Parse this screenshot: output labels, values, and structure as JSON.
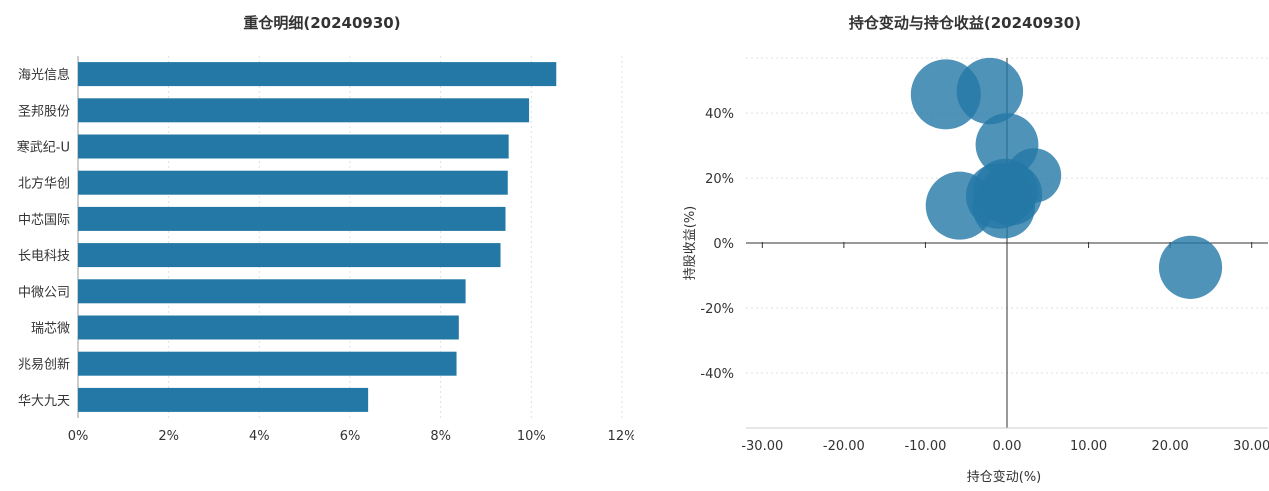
{
  "chart_data": [
    {
      "type": "bar",
      "orientation": "horizontal",
      "title": "重仓明细(20240930)",
      "categories": [
        "海光信息",
        "圣邦股份",
        "寒武纪-U",
        "北方华创",
        "中芯国际",
        "长电科技",
        "中微公司",
        "瑞芯微",
        "兆易创新",
        "华大九天"
      ],
      "values": [
        10.55,
        9.95,
        9.5,
        9.48,
        9.43,
        9.32,
        8.55,
        8.4,
        8.35,
        6.4
      ],
      "xlim": [
        0,
        12
      ],
      "xticks": [
        "0%",
        "2%",
        "4%",
        "6%",
        "8%",
        "10%",
        "12%"
      ],
      "grid": true,
      "color": "#2378a6"
    },
    {
      "type": "scatter",
      "subtype": "bubble",
      "title": "持仓变动与持仓收益(20240930)",
      "xlabel": "持仓变动(%)",
      "ylabel": "持股收益(%)",
      "xlim": [
        -32,
        32
      ],
      "ylim": [
        -57,
        57
      ],
      "xticks": [
        "-30.00",
        "-20.00",
        "-10.00",
        "0.00",
        "10.00",
        "20.00",
        "30.00"
      ],
      "yticks": [
        "40%",
        "20%",
        "0%",
        "-20%",
        "-40%"
      ],
      "grid": true,
      "color": "#2378a6",
      "points": [
        {
          "x": -7.5,
          "y": 45.8,
          "size": 10.55
        },
        {
          "x": -2.1,
          "y": 46.8,
          "size": 9.5
        },
        {
          "x": 0.0,
          "y": 30.3,
          "size": 8.5
        },
        {
          "x": 3.3,
          "y": 20.8,
          "size": 6.4
        },
        {
          "x": -5.8,
          "y": 11.5,
          "size": 9.95
        },
        {
          "x": -0.4,
          "y": 11.0,
          "size": 8.4
        },
        {
          "x": -1.0,
          "y": 14.5,
          "size": 9.3
        },
        {
          "x": 0.5,
          "y": 15.0,
          "size": 8.3
        },
        {
          "x": -0.2,
          "y": 16.0,
          "size": 9.0
        },
        {
          "x": 22.5,
          "y": -7.5,
          "size": 8.6
        }
      ]
    }
  ]
}
